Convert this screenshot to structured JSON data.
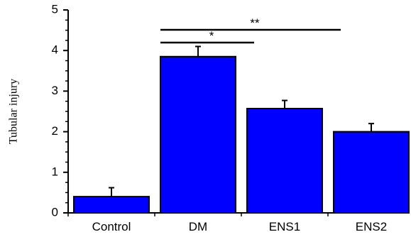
{
  "chart_data": {
    "type": "bar",
    "categories": [
      "Control",
      "DM",
      "ENS1",
      "ENS2"
    ],
    "values": [
      0.4,
      3.85,
      2.57,
      2.0
    ],
    "errors": [
      0.22,
      0.25,
      0.2,
      0.2
    ],
    "ylabel": "Tubular injury",
    "xlabel": "",
    "ylim": [
      0,
      5
    ],
    "yticks": [
      0,
      1,
      2,
      3,
      4,
      5
    ],
    "bar_color": "#0000ff",
    "significance": [
      {
        "from": "DM",
        "to": "ENS1",
        "label": "*"
      },
      {
        "from": "DM",
        "to": "ENS2",
        "label": "**"
      }
    ],
    "grid": false
  }
}
